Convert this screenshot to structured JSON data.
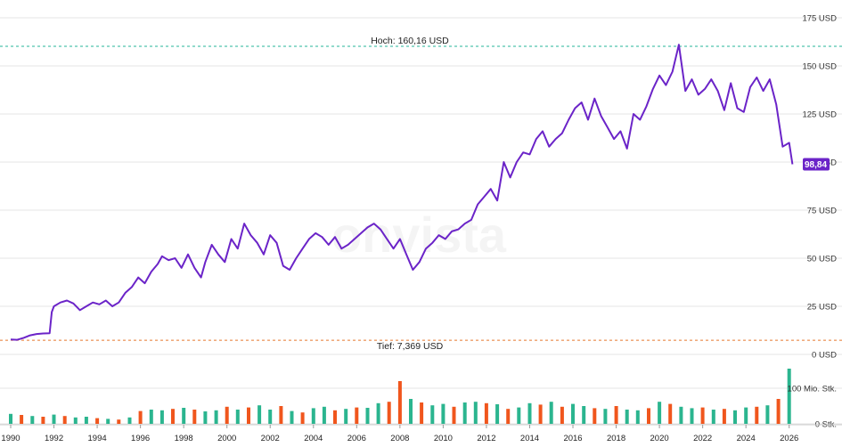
{
  "watermark": "onvista",
  "colors": {
    "price_line": "#6b24c8",
    "high_line": "#26b59a",
    "low_line": "#e8772e",
    "volume_up": "#2bb58f",
    "volume_down": "#f0561d",
    "badge_bg": "#6b24c8"
  },
  "chart_data": [
    {
      "type": "line",
      "title": "",
      "xlabel": "",
      "ylabel": "",
      "xlim": [
        1990,
        2026.3
      ],
      "ylim": [
        0,
        175
      ],
      "y_ticks": [
        0,
        25,
        50,
        75,
        100,
        125,
        150,
        175
      ],
      "y_tick_labels": [
        "0 USD",
        "25 USD",
        "50 USD",
        "75 USD",
        "100 USD",
        "125 USD",
        "150 USD",
        "175 USD"
      ],
      "x_ticks": [
        1990,
        1992,
        1994,
        1996,
        1998,
        2000,
        2002,
        2004,
        2006,
        2008,
        2010,
        2012,
        2014,
        2016,
        2018,
        2020,
        2022,
        2024,
        2026
      ],
      "grid": true,
      "high_label": "Hoch: 160,16 USD",
      "high_value": 160.16,
      "low_label": "Tief: 7,369 USD",
      "low_value": 7.369,
      "last_value_label": "98,84",
      "last_value": 98.84,
      "series": [
        {
          "x": [
            1990.0,
            1990.3,
            1990.6,
            1990.9,
            1991.2,
            1991.5,
            1991.8,
            1991.9,
            1992.0,
            1992.3,
            1992.6,
            1992.9,
            1993.2,
            1993.5,
            1993.8,
            1994.1,
            1994.4,
            1994.7,
            1995.0,
            1995.3,
            1995.6,
            1995.9,
            1996.2,
            1996.5,
            1996.8,
            1997.0,
            1997.3,
            1997.6,
            1997.9,
            1998.2,
            1998.5,
            1998.8,
            1999.0,
            1999.3,
            1999.6,
            1999.9,
            2000.2,
            2000.5,
            2000.8,
            2001.1,
            2001.4,
            2001.7,
            2002.0,
            2002.3,
            2002.6,
            2002.9,
            2003.2,
            2003.5,
            2003.8,
            2004.1,
            2004.4,
            2004.7,
            2005.0,
            2005.3,
            2005.6,
            2005.9,
            2006.2,
            2006.5,
            2006.8,
            2007.1,
            2007.4,
            2007.7,
            2008.0,
            2008.3,
            2008.6,
            2008.9,
            2009.2,
            2009.5,
            2009.8,
            2010.1,
            2010.4,
            2010.7,
            2011.0,
            2011.3,
            2011.6,
            2011.9,
            2012.2,
            2012.5,
            2012.8,
            2013.1,
            2013.4,
            2013.7,
            2014.0,
            2014.3,
            2014.6,
            2014.9,
            2015.2,
            2015.5,
            2015.8,
            2016.1,
            2016.4,
            2016.7,
            2017.0,
            2017.3,
            2017.6,
            2017.9,
            2018.2,
            2018.5,
            2018.8,
            2019.1,
            2019.4,
            2019.7,
            2020.0,
            2020.3,
            2020.6,
            2020.9,
            2021.2,
            2021.5,
            2021.8,
            2022.1,
            2022.4,
            2022.7,
            2023.0,
            2023.3,
            2023.6,
            2023.9,
            2024.2,
            2024.5,
            2024.8,
            2025.1,
            2025.4,
            2025.7,
            2026.0,
            2026.15
          ],
          "values": [
            7.8,
            7.6,
            8.6,
            9.9,
            10.6,
            10.9,
            11.0,
            22.0,
            25.0,
            27.0,
            28.0,
            26.5,
            23.0,
            25.0,
            27.0,
            26.0,
            28.0,
            25.0,
            27.0,
            32.0,
            35.0,
            40.0,
            37.0,
            43.0,
            47.0,
            51.0,
            49.0,
            50.0,
            45.0,
            52.0,
            45.0,
            40.0,
            48.0,
            57.0,
            52.0,
            48.0,
            60.0,
            55.0,
            68.0,
            62.0,
            58.0,
            52.0,
            62.0,
            58.0,
            46.0,
            44.0,
            50.0,
            55.0,
            60.0,
            63.0,
            61.0,
            57.0,
            61.0,
            55.0,
            57.0,
            60.0,
            63.0,
            66.0,
            68.0,
            65.0,
            60.0,
            55.0,
            60.0,
            52.0,
            44.0,
            48.0,
            55.0,
            58.0,
            62.0,
            60.0,
            64.0,
            65.0,
            68.0,
            70.0,
            78.0,
            82.0,
            86.0,
            80.0,
            100.0,
            92.0,
            100.0,
            105.0,
            104.0,
            112.0,
            116.0,
            108.0,
            112.0,
            115.0,
            122.0,
            128.0,
            131.0,
            122.0,
            133.0,
            124.0,
            118.0,
            112.0,
            116.0,
            107.0,
            125.0,
            122.0,
            129.0,
            138.0,
            145.0,
            140.0,
            147.0,
            161.0,
            137.0,
            143.0,
            135.0,
            138.0,
            143.0,
            137.0,
            127.0,
            141.0,
            128.0,
            126.0,
            139.0,
            144.0,
            137.0,
            143.0,
            130.0,
            108.0,
            110.0,
            98.84
          ]
        }
      ]
    },
    {
      "type": "bar",
      "title": "",
      "ylabel": "",
      "ylim": [
        0,
        150
      ],
      "y_ticks": [
        0,
        100
      ],
      "y_tick_labels": [
        "0 Stk.",
        "100 Mio. Stk."
      ],
      "unit": "Mio. Stk.",
      "series": [
        {
          "x": [
            1990.0,
            1990.5,
            1991.0,
            1991.5,
            1992.0,
            1992.5,
            1993.0,
            1993.5,
            1994.0,
            1994.5,
            1995.0,
            1995.5,
            1996.0,
            1996.5,
            1997.0,
            1997.5,
            1998.0,
            1998.5,
            1999.0,
            1999.5,
            2000.0,
            2000.5,
            2001.0,
            2001.5,
            2002.0,
            2002.5,
            2003.0,
            2003.5,
            2004.0,
            2004.5,
            2005.0,
            2005.5,
            2006.0,
            2006.5,
            2007.0,
            2007.5,
            2008.0,
            2008.5,
            2009.0,
            2009.5,
            2010.0,
            2010.5,
            2011.0,
            2011.5,
            2012.0,
            2012.5,
            2013.0,
            2013.5,
            2014.0,
            2014.5,
            2015.0,
            2015.5,
            2016.0,
            2016.5,
            2017.0,
            2017.5,
            2018.0,
            2018.5,
            2019.0,
            2019.5,
            2020.0,
            2020.5,
            2021.0,
            2021.5,
            2022.0,
            2022.5,
            2023.0,
            2023.5,
            2024.0,
            2024.5,
            2025.0,
            2025.5,
            2026.0
          ],
          "values": [
            28,
            25,
            22,
            20,
            26,
            22,
            18,
            20,
            16,
            14,
            12,
            18,
            36,
            40,
            38,
            42,
            45,
            40,
            35,
            38,
            48,
            40,
            46,
            52,
            40,
            50,
            36,
            32,
            44,
            48,
            38,
            42,
            46,
            45,
            58,
            62,
            120,
            70,
            60,
            52,
            56,
            48,
            60,
            62,
            58,
            55,
            42,
            46,
            58,
            54,
            62,
            48,
            56,
            50,
            44,
            42,
            50,
            40,
            38,
            44,
            62,
            56,
            48,
            44,
            46,
            40,
            42,
            38,
            46,
            48,
            52,
            70,
            155
          ],
          "up": [
            true,
            false,
            true,
            false,
            true,
            false,
            true,
            true,
            false,
            true,
            false,
            true,
            false,
            true,
            true,
            false,
            true,
            false,
            true,
            true,
            false,
            true,
            false,
            true,
            true,
            false,
            true,
            false,
            true,
            true,
            false,
            true,
            false,
            true,
            true,
            false,
            false,
            true,
            false,
            true,
            true,
            false,
            true,
            true,
            false,
            true,
            false,
            true,
            true,
            false,
            true,
            false,
            true,
            true,
            false,
            true,
            false,
            true,
            true,
            false,
            true,
            false,
            true,
            true,
            false,
            true,
            false,
            true,
            true,
            false,
            true,
            false,
            true
          ]
        }
      ]
    }
  ]
}
